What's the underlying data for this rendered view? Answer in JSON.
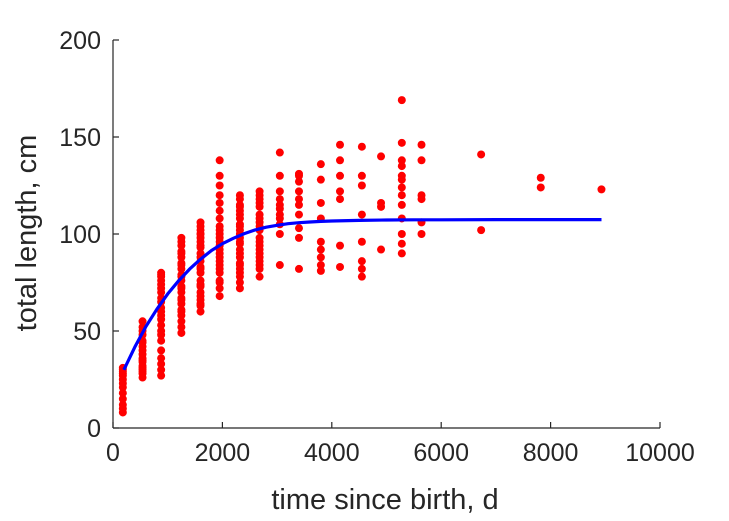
{
  "chart_data": {
    "type": "scatter",
    "title": "",
    "xlabel": "time since birth, d",
    "ylabel": "total length, cm",
    "xlim": [
      0,
      10000
    ],
    "ylim": [
      0,
      200
    ],
    "xticks": [
      0,
      2000,
      4000,
      6000,
      8000,
      10000
    ],
    "yticks": [
      0,
      50,
      100,
      150,
      200
    ],
    "xtick_labels": [
      "0",
      "2000",
      "4000",
      "6000",
      "8000",
      "10000"
    ],
    "ytick_labels": [
      "0",
      "50",
      "100",
      "150",
      "200"
    ],
    "grid": false,
    "colors": {
      "points": "#ff0000",
      "fit": "#0000ff",
      "axes": "#262626"
    },
    "series": [
      {
        "kind": "points",
        "x": [
          180,
          180,
          180,
          180,
          180,
          180,
          180,
          180,
          180,
          180,
          180,
          180,
          180,
          540,
          540,
          540,
          540,
          540,
          540,
          540,
          540,
          540,
          540,
          540,
          540,
          540,
          540,
          540,
          540,
          540,
          540,
          880,
          880,
          880,
          880,
          880,
          880,
          880,
          880,
          880,
          880,
          880,
          880,
          880,
          880,
          880,
          880,
          880,
          880,
          880,
          880,
          880,
          880,
          1250,
          1250,
          1250,
          1250,
          1250,
          1250,
          1250,
          1250,
          1250,
          1250,
          1250,
          1250,
          1250,
          1250,
          1250,
          1250,
          1250,
          1250,
          1250,
          1250,
          1250,
          1250,
          1250,
          1250,
          1600,
          1600,
          1600,
          1600,
          1600,
          1600,
          1600,
          1600,
          1600,
          1600,
          1600,
          1600,
          1600,
          1600,
          1600,
          1600,
          1600,
          1600,
          1600,
          1600,
          1600,
          1600,
          1600,
          1600,
          1950,
          1950,
          1950,
          1950,
          1950,
          1950,
          1950,
          1950,
          1950,
          1950,
          1950,
          1950,
          1950,
          1950,
          1950,
          1950,
          1950,
          1950,
          1950,
          1950,
          1950,
          1950,
          1950,
          1950,
          2320,
          2320,
          2320,
          2320,
          2320,
          2320,
          2320,
          2320,
          2320,
          2320,
          2320,
          2320,
          2320,
          2320,
          2320,
          2320,
          2320,
          2320,
          2320,
          2320,
          2320,
          2320,
          2320,
          2320,
          2680,
          2680,
          2680,
          2680,
          2680,
          2680,
          2680,
          2680,
          2680,
          2680,
          2680,
          2680,
          2680,
          2680,
          2680,
          2680,
          2680,
          2680,
          2680,
          2680,
          3050,
          3050,
          3050,
          3050,
          3050,
          3050,
          3050,
          3050,
          3050,
          3050,
          3050,
          3400,
          3400,
          3400,
          3400,
          3400,
          3400,
          3400,
          3400,
          3400,
          3400,
          3800,
          3800,
          3800,
          3800,
          3800,
          3800,
          3800,
          3800,
          3800,
          4150,
          4150,
          4150,
          4150,
          4150,
          4150,
          4150,
          4550,
          4550,
          4550,
          4550,
          4550,
          4550,
          4550,
          4550,
          4900,
          4900,
          4900,
          4900,
          5280,
          5280,
          5280,
          5280,
          5280,
          5280,
          5280,
          5280,
          5280,
          5280,
          5280,
          5280,
          5280,
          5640,
          5640,
          5640,
          5640,
          5640,
          5640,
          6730,
          6730,
          7820,
          7820,
          8930
        ],
        "y": [
          8,
          12,
          15,
          18,
          21,
          23,
          25,
          27,
          28,
          29,
          30,
          31,
          10,
          26,
          28,
          30,
          32,
          35,
          38,
          42,
          45,
          48,
          50,
          52,
          55,
          40,
          44,
          36,
          34,
          31,
          29,
          27,
          30,
          33,
          36,
          40,
          45,
          48,
          50,
          53,
          56,
          58,
          60,
          62,
          65,
          67,
          70,
          72,
          74,
          76,
          78,
          79,
          80,
          49,
          52,
          55,
          58,
          61,
          64,
          67,
          70,
          73,
          76,
          79,
          82,
          85,
          88,
          91,
          94,
          96,
          98,
          60,
          66,
          72,
          78,
          84,
          90,
          60,
          63,
          66,
          70,
          73,
          76,
          80,
          83,
          86,
          90,
          93,
          96,
          98,
          100,
          102,
          104,
          106,
          64,
          68,
          74,
          82,
          88,
          94,
          100,
          68,
          72,
          76,
          80,
          84,
          88,
          92,
          96,
          100,
          104,
          108,
          112,
          116,
          120,
          125,
          130,
          138,
          75,
          82,
          86,
          90,
          94,
          98,
          102,
          72,
          75,
          78,
          82,
          85,
          88,
          92,
          95,
          98,
          102,
          105,
          108,
          112,
          115,
          118,
          120,
          80,
          84,
          90,
          96,
          100,
          104,
          110,
          114,
          78,
          82,
          86,
          90,
          94,
          98,
          102,
          106,
          110,
          114,
          118,
          120,
          122,
          84,
          88,
          92,
          96,
          104,
          108,
          116,
          84,
          100,
          105,
          108,
          110,
          113,
          115,
          118,
          122,
          130,
          142,
          82,
          98,
          103,
          110,
          115,
          118,
          122,
          127,
          131,
          130,
          81,
          84,
          88,
          92,
          96,
          108,
          116,
          128,
          136,
          83,
          94,
          118,
          122,
          130,
          138,
          146,
          78,
          82,
          86,
          96,
          110,
          125,
          130,
          145,
          92,
          114,
          140,
          116,
          90,
          95,
          100,
          108,
          115,
          120,
          124,
          128,
          130,
          135,
          138,
          147,
          169,
          100,
          106,
          118,
          120,
          138,
          146,
          102,
          141,
          124,
          129,
          123
        ]
      },
      {
        "kind": "fit",
        "x": [
          200,
          400,
          600,
          800,
          1000,
          1200,
          1400,
          1600,
          1800,
          2000,
          2200,
          2400,
          2600,
          2800,
          3000,
          3200,
          3400,
          3600,
          3800,
          4000,
          4500,
          5000,
          5500,
          6000,
          7000,
          8000,
          8930
        ],
        "y": [
          30.0,
          41.8,
          52.2,
          61.2,
          69.1,
          75.9,
          81.9,
          87.0,
          91.5,
          95.0,
          97.8,
          100.2,
          102.1,
          103.5,
          104.5,
          105.3,
          105.8,
          106.2,
          106.5,
          106.7,
          107.0,
          107.2,
          107.3,
          107.3,
          107.4,
          107.4,
          107.4
        ]
      }
    ]
  }
}
